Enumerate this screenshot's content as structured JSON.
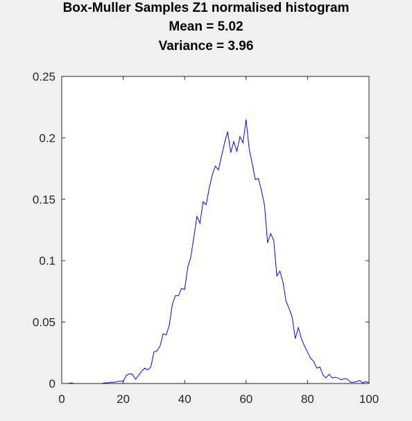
{
  "chart_data": {
    "type": "line",
    "title_lines": [
      "Box-Muller Samples Z1 normalised histogram",
      "Mean = 5.02",
      "Variance = 3.96"
    ],
    "xlabel": "",
    "ylabel": "",
    "xlim": [
      0,
      100
    ],
    "ylim": [
      0,
      0.25
    ],
    "xticks": [
      0,
      20,
      40,
      60,
      80,
      100
    ],
    "xtick_labels": [
      "0",
      "20",
      "40",
      "60",
      "80",
      "100"
    ],
    "yticks": [
      0,
      0.05,
      0.1,
      0.15,
      0.2,
      0.25
    ],
    "ytick_labels": [
      "0",
      "0.05",
      "0.1",
      "0.15",
      "0.2",
      "0.25"
    ],
    "grid": false,
    "line_color": "#0000ff",
    "axes_color": "#262626",
    "series": [
      {
        "x": [
          1,
          2,
          3,
          4,
          5,
          6,
          7,
          8,
          9,
          10,
          11,
          12,
          13,
          14,
          15,
          16,
          17,
          18,
          19,
          20,
          21,
          22,
          23,
          24,
          25,
          26,
          27,
          28,
          29,
          30,
          31,
          32,
          33,
          34,
          35,
          36,
          37,
          38,
          39,
          40,
          41,
          42,
          43,
          44,
          45,
          46,
          47,
          48,
          49,
          50,
          51,
          52,
          53,
          54,
          55,
          56,
          57,
          58,
          59,
          60,
          61,
          62,
          63,
          64,
          65,
          66,
          67,
          68,
          69,
          70,
          71,
          72,
          73,
          74,
          75,
          76,
          77,
          78,
          79,
          80,
          81,
          82,
          83,
          84,
          85,
          86,
          87,
          88,
          89,
          90,
          91,
          92,
          93,
          94,
          95,
          96,
          97,
          98,
          99,
          100
        ],
        "values": [
          0,
          0,
          0.0005,
          0,
          0,
          0,
          0,
          0,
          0,
          0,
          0,
          0,
          0,
          0.0005,
          0.0005,
          0.001,
          0.001,
          0.0015,
          0.002,
          0.0015,
          0.0065,
          0.008,
          0.0075,
          0.0035,
          0.0065,
          0.01,
          0.0125,
          0.011,
          0.0135,
          0.0255,
          0.0265,
          0.0305,
          0.0405,
          0.0395,
          0.0475,
          0.0645,
          0.0715,
          0.0715,
          0.0775,
          0.0765,
          0.0945,
          0.103,
          0.119,
          0.136,
          0.1305,
          0.148,
          0.1455,
          0.159,
          0.17,
          0.177,
          0.174,
          0.185,
          0.196,
          0.205,
          0.188,
          0.197,
          0.189,
          0.201,
          0.196,
          0.215,
          0.191,
          0.179,
          0.166,
          0.167,
          0.157,
          0.145,
          0.1145,
          0.122,
          0.1165,
          0.0875,
          0.0915,
          0.0825,
          0.067,
          0.061,
          0.054,
          0.0365,
          0.0455,
          0.0365,
          0.0305,
          0.0255,
          0.0205,
          0.018,
          0.0125,
          0.0135,
          0.007,
          0.0045,
          0.0075,
          0.0045,
          0.005,
          0.0045,
          0.003,
          0.004,
          0.0035,
          0.001,
          0.001,
          0.0015,
          0.0025,
          0.0005,
          0.0015,
          0.0005
        ]
      }
    ]
  }
}
